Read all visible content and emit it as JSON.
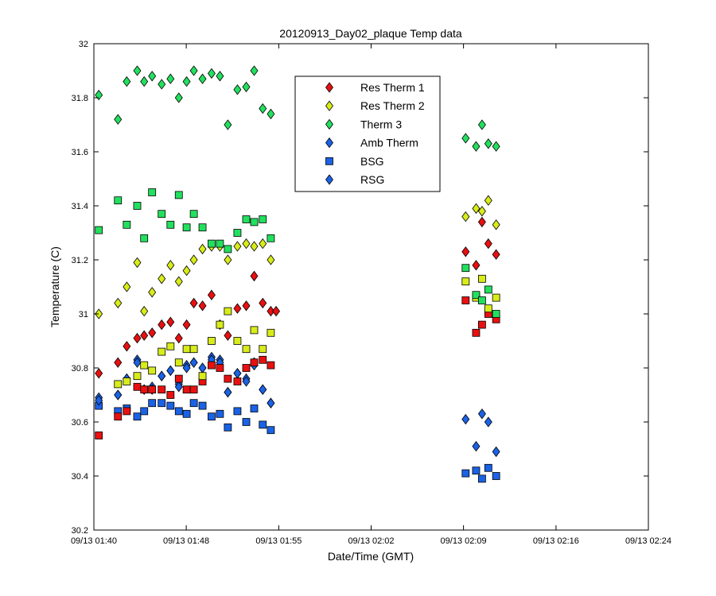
{
  "chart_data": {
    "type": "scatter",
    "title": "20120913_Day02_plaque Temp data",
    "xlabel": "Date/Time (GMT)",
    "ylabel": "Temperature (C)",
    "x_unit": "minutes since 09/13 01:40",
    "xlim": [
      0,
      44
    ],
    "ylim": [
      30.2,
      32
    ],
    "x_ticks": [
      {
        "value": 0,
        "label": "09/13 01:40"
      },
      {
        "value": 7.33,
        "label": "09/13 01:48"
      },
      {
        "value": 14.67,
        "label": "09/13 01:55"
      },
      {
        "value": 22,
        "label": "09/13 02:02"
      },
      {
        "value": 29.33,
        "label": "09/13 02:09"
      },
      {
        "value": 36.67,
        "label": "09/13 02:16"
      },
      {
        "value": 44,
        "label": "09/13 02:24"
      }
    ],
    "y_ticks": [
      {
        "value": 30.2,
        "label": "30.2"
      },
      {
        "value": 30.4,
        "label": "30.4"
      },
      {
        "value": 30.6,
        "label": "30.6"
      },
      {
        "value": 30.8,
        "label": "30.8"
      },
      {
        "value": 31,
        "label": "31"
      },
      {
        "value": 31.2,
        "label": "31.2"
      },
      {
        "value": 31.4,
        "label": "31.4"
      },
      {
        "value": 31.6,
        "label": "31.6"
      },
      {
        "value": 31.8,
        "label": "31.8"
      },
      {
        "value": 32,
        "label": "32"
      }
    ],
    "grid": false,
    "legend_position": "top-center",
    "series": [
      {
        "name": "Res Therm 1",
        "marker": "diamond",
        "color": "#e81010",
        "x": [
          0.39,
          1.91,
          2.61,
          3.44,
          3.99,
          4.62,
          5.38,
          6.08,
          6.74,
          7.36,
          7.93,
          8.62,
          9.34,
          10.0,
          10.63,
          11.39,
          12.09,
          12.72,
          13.4,
          14.04,
          14.46,
          29.5,
          30.33,
          30.8,
          31.3,
          31.92
        ],
        "y": [
          30.78,
          30.82,
          30.88,
          30.91,
          30.92,
          30.93,
          30.96,
          30.97,
          30.91,
          30.96,
          31.04,
          31.03,
          31.07,
          30.96,
          30.92,
          31.02,
          31.03,
          31.14,
          31.04,
          31.01,
          31.01,
          31.23,
          31.18,
          31.34,
          31.26,
          31.22
        ]
      },
      {
        "name": "Res Therm 2",
        "marker": "diamond",
        "color": "#d8ec1a",
        "x": [
          0.39,
          1.91,
          2.61,
          3.44,
          3.99,
          4.62,
          5.38,
          6.08,
          6.74,
          7.36,
          7.93,
          8.62,
          9.34,
          10.0,
          10.63,
          11.39,
          12.09,
          12.72,
          13.4,
          14.04,
          29.5,
          30.33,
          30.8,
          31.3,
          31.92
        ],
        "y": [
          31.0,
          31.04,
          31.1,
          31.19,
          31.01,
          31.08,
          31.13,
          31.18,
          31.12,
          31.16,
          31.2,
          31.24,
          31.25,
          31.25,
          31.2,
          31.25,
          31.26,
          31.25,
          31.26,
          31.2,
          31.36,
          31.39,
          31.38,
          31.42,
          31.33
        ]
      },
      {
        "name": "Therm 3",
        "marker": "diamond",
        "color": "#22e05e",
        "x": [
          0.39,
          1.91,
          2.61,
          3.44,
          3.99,
          4.62,
          5.38,
          6.08,
          6.74,
          7.36,
          7.93,
          8.62,
          9.34,
          10.0,
          10.63,
          11.39,
          12.09,
          12.72,
          13.4,
          14.04,
          29.5,
          30.33,
          30.8,
          31.3,
          31.92
        ],
        "y": [
          31.81,
          31.72,
          31.86,
          31.9,
          31.86,
          31.88,
          31.85,
          31.87,
          31.8,
          31.86,
          31.9,
          31.87,
          31.89,
          31.88,
          31.7,
          31.83,
          31.84,
          31.9,
          31.76,
          31.74,
          31.65,
          31.62,
          31.7,
          31.63,
          31.62
        ]
      },
      {
        "name": "Amb Therm",
        "marker": "diamond",
        "color": "#1a62e6",
        "x": [
          0.39,
          1.91,
          2.61,
          3.44,
          3.99,
          4.62,
          5.38,
          6.08,
          6.74,
          7.36,
          7.93,
          8.62,
          9.34,
          10.0,
          10.63,
          11.39,
          12.09,
          12.72,
          13.4,
          14.04,
          29.5,
          30.33,
          30.8,
          31.3,
          31.92
        ],
        "y": [
          30.69,
          30.7,
          30.76,
          30.83,
          30.72,
          30.73,
          30.77,
          30.79,
          30.74,
          30.81,
          30.82,
          30.8,
          30.84,
          30.83,
          30.71,
          30.78,
          30.76,
          30.82,
          30.72,
          30.67,
          30.61,
          30.51,
          30.63,
          30.6,
          30.49
        ]
      },
      {
        "name": "BSG",
        "marker": "square",
        "color": "#1a62e6",
        "x": [
          0.39,
          1.91,
          2.61,
          3.44,
          3.99,
          4.62,
          5.38,
          6.08,
          6.74,
          7.36,
          7.93,
          8.62,
          9.34,
          10.0,
          10.63,
          11.39,
          12.09,
          12.72,
          13.4,
          14.04,
          29.5,
          30.33,
          30.8,
          31.3,
          31.92
        ],
        "y": [
          30.66,
          30.64,
          30.65,
          30.62,
          30.64,
          30.67,
          30.67,
          30.66,
          30.64,
          30.63,
          30.67,
          30.66,
          30.62,
          30.63,
          30.58,
          30.64,
          30.6,
          30.65,
          30.59,
          30.57,
          30.41,
          30.42,
          30.39,
          30.43,
          30.4
        ]
      },
      {
        "name": "RSG",
        "marker": "diamond",
        "color": "#1a62e6",
        "x": [
          0.39,
          1.91,
          2.61,
          3.44,
          3.99,
          4.62,
          5.38,
          6.08,
          6.74,
          7.36,
          7.93,
          8.62,
          9.34,
          10.0,
          10.63,
          11.39,
          12.09,
          12.72,
          13.4,
          14.04
        ],
        "y": [
          30.68,
          30.7,
          30.76,
          30.82,
          30.72,
          30.72,
          30.77,
          30.79,
          30.73,
          30.8,
          30.82,
          30.8,
          30.83,
          30.82,
          30.71,
          30.78,
          30.75,
          30.81,
          30.72,
          30.67
        ]
      },
      {
        "name": "",
        "marker": "square",
        "color": "#e81010",
        "x": [
          0.39,
          1.91,
          2.61,
          3.44,
          3.99,
          4.62,
          5.38,
          6.08,
          6.74,
          7.36,
          7.93,
          8.62,
          9.34,
          10.0,
          10.63,
          11.39,
          12.09,
          12.72,
          13.4,
          14.04,
          29.5,
          30.33,
          30.8,
          31.3,
          31.92
        ],
        "y": [
          30.55,
          30.62,
          30.64,
          30.73,
          30.72,
          30.72,
          30.72,
          30.7,
          30.76,
          30.72,
          30.72,
          30.75,
          30.81,
          30.8,
          30.76,
          30.75,
          30.8,
          30.82,
          30.83,
          30.81,
          31.05,
          30.93,
          30.96,
          31.0,
          30.98
        ]
      },
      {
        "name": "",
        "marker": "square",
        "color": "#d8ec1a",
        "x": [
          1.91,
          2.61,
          3.44,
          3.99,
          4.62,
          5.38,
          6.08,
          6.74,
          7.36,
          7.93,
          8.62,
          9.34,
          10.0,
          10.63,
          11.39,
          12.09,
          12.72,
          13.4,
          14.04,
          29.5,
          30.33,
          30.8,
          31.3,
          31.92
        ],
        "y": [
          30.74,
          30.75,
          30.77,
          30.81,
          30.79,
          30.86,
          30.88,
          30.82,
          30.87,
          30.87,
          30.77,
          30.9,
          30.96,
          31.01,
          30.9,
          30.87,
          30.94,
          30.87,
          30.93,
          31.12,
          31.06,
          31.13,
          31.02,
          31.06
        ]
      },
      {
        "name": "",
        "marker": "square",
        "color": "#22e05e",
        "x": [
          0.39,
          1.91,
          2.61,
          3.44,
          3.99,
          4.62,
          5.38,
          6.08,
          6.74,
          7.36,
          7.93,
          8.62,
          9.34,
          10.0,
          10.63,
          11.39,
          12.09,
          12.72,
          13.4,
          14.04,
          29.5,
          30.33,
          30.8,
          31.3,
          31.92
        ],
        "y": [
          31.31,
          31.42,
          31.33,
          31.4,
          31.28,
          31.45,
          31.37,
          31.33,
          31.44,
          31.32,
          31.37,
          31.32,
          31.26,
          31.26,
          31.24,
          31.3,
          31.35,
          31.34,
          31.35,
          31.28,
          31.17,
          31.07,
          31.05,
          31.09,
          31.0
        ]
      }
    ]
  }
}
